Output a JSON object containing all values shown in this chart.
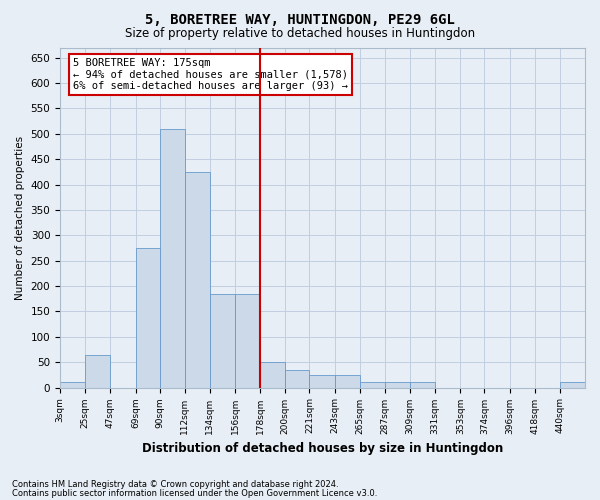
{
  "title": "5, BORETREE WAY, HUNTINGDON, PE29 6GL",
  "subtitle": "Size of property relative to detached houses in Huntingdon",
  "xlabel": "Distribution of detached houses by size in Huntingdon",
  "ylabel": "Number of detached properties",
  "bar_color": "#ccd9e8",
  "bar_edge_color": "#6699cc",
  "grid_color": "#c0cfe0",
  "background_color": "#e8eef5",
  "vline_color": "#cc0000",
  "vline_x": 178,
  "categories": [
    "3sqm",
    "25sqm",
    "47sqm",
    "69sqm",
    "90sqm",
    "112sqm",
    "134sqm",
    "156sqm",
    "178sqm",
    "200sqm",
    "221sqm",
    "243sqm",
    "265sqm",
    "287sqm",
    "309sqm",
    "331sqm",
    "353sqm",
    "374sqm",
    "396sqm",
    "418sqm",
    "440sqm"
  ],
  "bin_edges": [
    3,
    25,
    47,
    69,
    90,
    112,
    134,
    156,
    178,
    200,
    221,
    243,
    265,
    287,
    309,
    331,
    353,
    374,
    396,
    418,
    440,
    462
  ],
  "values": [
    10,
    65,
    0,
    275,
    510,
    425,
    185,
    185,
    50,
    35,
    25,
    25,
    10,
    10,
    10,
    0,
    0,
    0,
    0,
    0,
    10
  ],
  "ylim": [
    0,
    670
  ],
  "yticks": [
    0,
    50,
    100,
    150,
    200,
    250,
    300,
    350,
    400,
    450,
    500,
    550,
    600,
    650
  ],
  "annotation_line1": "5 BORETREE WAY: 175sqm",
  "annotation_line2": "← 94% of detached houses are smaller (1,578)",
  "annotation_line3": "6% of semi-detached houses are larger (93) →",
  "annotation_box_color": "#ffffff",
  "annotation_box_edgecolor": "#cc0000",
  "footer1": "Contains HM Land Registry data © Crown copyright and database right 2024.",
  "footer2": "Contains public sector information licensed under the Open Government Licence v3.0."
}
